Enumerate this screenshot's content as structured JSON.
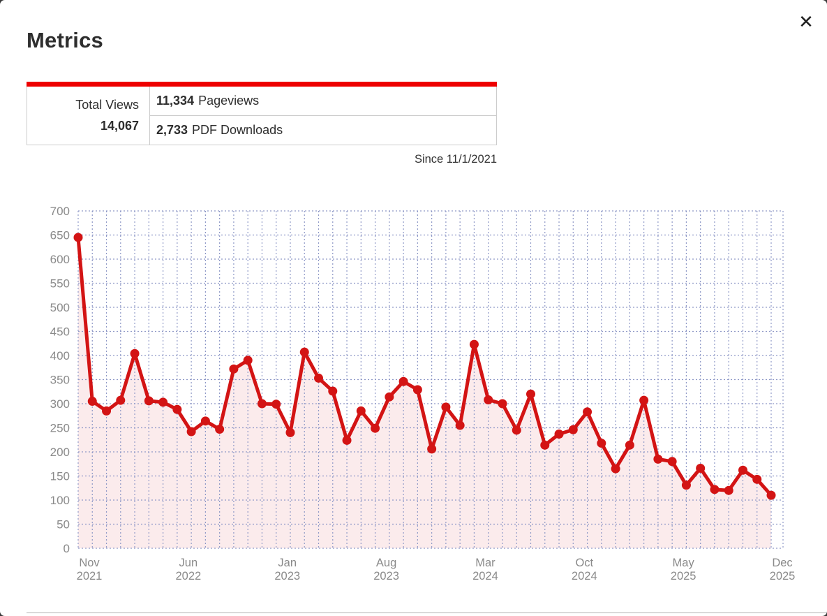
{
  "modal": {
    "title": "Metrics",
    "close_icon": "✕"
  },
  "summary_table": {
    "accent_color": "#ee0000",
    "total_label": "Total Views",
    "total_value": "14,067",
    "rows": [
      {
        "value": "11,334",
        "label": "Pageviews"
      },
      {
        "value": "2,733",
        "label": "PDF Downloads"
      }
    ]
  },
  "since_note": "Since 11/1/2021",
  "chart_data": {
    "type": "line",
    "title": "",
    "xlabel": "",
    "ylabel": "",
    "ylim": [
      0,
      700
    ],
    "ytick_step": 50,
    "grid": true,
    "legend": "none",
    "x": [
      "2021-11",
      "2021-12",
      "2022-01",
      "2022-02",
      "2022-03",
      "2022-04",
      "2022-05",
      "2022-06",
      "2022-07",
      "2022-08",
      "2022-09",
      "2022-10",
      "2022-11",
      "2022-12",
      "2023-01",
      "2023-02",
      "2023-03",
      "2023-04",
      "2023-05",
      "2023-06",
      "2023-07",
      "2023-08",
      "2023-09",
      "2023-10",
      "2023-11",
      "2023-12",
      "2024-01",
      "2024-02",
      "2024-03",
      "2024-04",
      "2024-05",
      "2024-06",
      "2024-07",
      "2024-08",
      "2024-09",
      "2024-10",
      "2024-11",
      "2024-12",
      "2025-01",
      "2025-02",
      "2025-03",
      "2025-04",
      "2025-05",
      "2025-06",
      "2025-07",
      "2025-08",
      "2025-09",
      "2025-10",
      "2025-11",
      "2025-12"
    ],
    "values": [
      645,
      305,
      285,
      307,
      404,
      306,
      303,
      288,
      242,
      264,
      247,
      372,
      390,
      300,
      299,
      240,
      407,
      353,
      326,
      224,
      285,
      249,
      314,
      346,
      329,
      206,
      293,
      255,
      423,
      308,
      300,
      245,
      320,
      214,
      237,
      246,
      283,
      218,
      165,
      214,
      307,
      185,
      180,
      131,
      166,
      122,
      120,
      162,
      143,
      110
    ],
    "xticks": [
      {
        "i": 0,
        "line1": "Nov",
        "line2": "2021"
      },
      {
        "i": 7,
        "line1": "Jun",
        "line2": "2022"
      },
      {
        "i": 14,
        "line1": "Jan",
        "line2": "2023"
      },
      {
        "i": 21,
        "line1": "Aug",
        "line2": "2023"
      },
      {
        "i": 28,
        "line1": "Mar",
        "line2": "2024"
      },
      {
        "i": 35,
        "line1": "Oct",
        "line2": "2024"
      },
      {
        "i": 42,
        "line1": "May",
        "line2": "2025"
      },
      {
        "i": 49,
        "line1": "Dec",
        "line2": "2025"
      }
    ],
    "colors": {
      "line": "#d31414",
      "marker": "#d31414",
      "area_fill": "rgba(211,20,30,0.085)",
      "grid": "#8f99c7",
      "axis_text": "#8a8a8a"
    }
  }
}
